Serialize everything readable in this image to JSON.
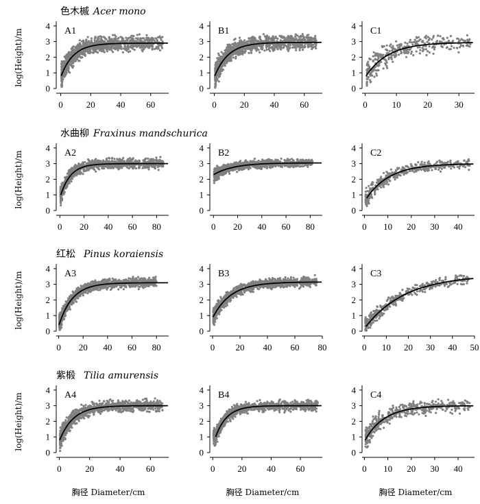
{
  "figure": {
    "y_label": "log(Height)/m",
    "x_label": "胸径 Diameter/cm"
  },
  "rows": [
    {
      "cn": "色木槭",
      "latin": "Acer mono"
    },
    {
      "cn": "水曲柳",
      "latin": "Fraxinus mandschurica"
    },
    {
      "cn": "红松",
      "latin": "Pinus koraiensis"
    },
    {
      "cn": "紫椴",
      "latin": "Tilia amurensis"
    }
  ],
  "chart_data": [
    {
      "id": "A1",
      "type": "scatter",
      "row": 0,
      "col": 0,
      "xlim": [
        -3,
        72
      ],
      "xticks": [
        0,
        20,
        40,
        60
      ],
      "ylim": [
        0,
        4.3
      ],
      "yticks": [
        0,
        1,
        2,
        3,
        4
      ],
      "curve": {
        "a": 2.9,
        "b": 0.12,
        "x0": 0.3,
        "y0": 0.8
      },
      "scatter": {
        "xmax": 68,
        "n": 1100,
        "spread": 0.45,
        "color": "#808080"
      }
    },
    {
      "id": "B1",
      "type": "scatter",
      "row": 0,
      "col": 1,
      "xlim": [
        -3,
        72
      ],
      "xticks": [
        0,
        20,
        40,
        60
      ],
      "ylim": [
        0,
        4.3
      ],
      "yticks": [
        0,
        1,
        2,
        3,
        4
      ],
      "curve": {
        "a": 2.95,
        "b": 0.11,
        "x0": 0.3,
        "y0": 0.8
      },
      "scatter": {
        "xmax": 68,
        "n": 1100,
        "spread": 0.45,
        "color": "#808080"
      }
    },
    {
      "id": "C1",
      "type": "scatter",
      "row": 0,
      "col": 2,
      "xlim": [
        -1,
        35
      ],
      "xticks": [
        0,
        10,
        20,
        30
      ],
      "ylim": [
        0,
        4.3
      ],
      "yticks": [
        0,
        1,
        2,
        3,
        4
      ],
      "curve": {
        "a": 2.95,
        "b": 0.14,
        "x0": 0.3,
        "y0": 0.8
      },
      "scatter": {
        "xmax": 34,
        "n": 350,
        "spread": 0.5,
        "color": "#808080"
      }
    },
    {
      "id": "A2",
      "type": "scatter",
      "row": 1,
      "col": 0,
      "xlim": [
        -3,
        90
      ],
      "xticks": [
        0,
        20,
        40,
        60,
        80
      ],
      "ylim": [
        0,
        4.3
      ],
      "yticks": [
        0,
        1,
        2,
        3,
        4
      ],
      "curve": {
        "a": 3.0,
        "b": 0.12,
        "x0": 0.8,
        "y0": 1.0
      },
      "scatter": {
        "xmax": 86,
        "n": 1000,
        "spread": 0.3,
        "color": "#808080"
      }
    },
    {
      "id": "B2",
      "type": "scatter",
      "row": 1,
      "col": 1,
      "xlim": [
        -3,
        90
      ],
      "xticks": [
        0,
        20,
        40,
        60,
        80
      ],
      "ylim": [
        0,
        4.3
      ],
      "yticks": [
        0,
        1,
        2,
        3,
        4
      ],
      "curve": {
        "a": 3.05,
        "b": 0.06,
        "x0": 0.3,
        "y0": 2.3
      },
      "scatter": {
        "xmax": 82,
        "n": 1000,
        "spread": 0.25,
        "color": "#808080"
      }
    },
    {
      "id": "C2",
      "type": "scatter",
      "row": 1,
      "col": 2,
      "xlim": [
        -1,
        47
      ],
      "xticks": [
        0,
        10,
        20,
        30,
        40
      ],
      "ylim": [
        0,
        4.3
      ],
      "yticks": [
        0,
        1,
        2,
        3,
        4
      ],
      "curve": {
        "a": 3.0,
        "b": 0.1,
        "x0": 1,
        "y0": 0.8
      },
      "scatter": {
        "xmax": 45,
        "n": 450,
        "spread": 0.3,
        "color": "#808080"
      }
    },
    {
      "id": "A3",
      "type": "scatter",
      "row": 2,
      "col": 0,
      "xlim": [
        -2,
        90
      ],
      "xticks": [
        0,
        20,
        40,
        60,
        80
      ],
      "ylim": [
        0,
        4.3
      ],
      "yticks": [
        0,
        1,
        2,
        3,
        4
      ],
      "curve": {
        "a": 3.1,
        "b": 0.09,
        "x0": 0.3,
        "y0": 0.4
      },
      "scatter": {
        "xmax": 80,
        "n": 1100,
        "spread": 0.3,
        "color": "#808080"
      }
    },
    {
      "id": "B3",
      "type": "scatter",
      "row": 2,
      "col": 1,
      "xlim": [
        -2,
        80
      ],
      "xticks": [
        0,
        20,
        40,
        60,
        80
      ],
      "ylim": [
        0,
        4.3
      ],
      "yticks": [
        0,
        1,
        2,
        3,
        4
      ],
      "curve": {
        "a": 3.15,
        "b": 0.075,
        "x0": 0.3,
        "y0": 0.9
      },
      "scatter": {
        "xmax": 76,
        "n": 1000,
        "spread": 0.3,
        "color": "#808080"
      }
    },
    {
      "id": "C3",
      "type": "scatter",
      "row": 2,
      "col": 2,
      "xlim": [
        -1,
        50
      ],
      "xticks": [
        0,
        10,
        20,
        30,
        40,
        50
      ],
      "ylim": [
        0,
        4.3
      ],
      "yticks": [
        0,
        1,
        2,
        3,
        4
      ],
      "curve": {
        "a": 3.6,
        "b": 0.055,
        "x0": 0.8,
        "y0": 0.3
      },
      "scatter": {
        "xmax": 48,
        "n": 400,
        "spread": 0.3,
        "color": "#808080"
      }
    },
    {
      "id": "A4",
      "type": "scatter",
      "row": 3,
      "col": 0,
      "xlim": [
        -2,
        72
      ],
      "xticks": [
        0,
        20,
        40,
        60
      ],
      "ylim": [
        0,
        4.3
      ],
      "yticks": [
        0,
        1,
        2,
        3,
        4
      ],
      "curve": {
        "a": 3.0,
        "b": 0.11,
        "x0": 0.3,
        "y0": 0.8
      },
      "scatter": {
        "xmax": 68,
        "n": 1100,
        "spread": 0.35,
        "color": "#808080"
      }
    },
    {
      "id": "B4",
      "type": "scatter",
      "row": 3,
      "col": 1,
      "xlim": [
        -2,
        75
      ],
      "xticks": [
        0,
        20,
        40,
        60
      ],
      "ylim": [
        0,
        4.3
      ],
      "yticks": [
        0,
        1,
        2,
        3,
        4
      ],
      "curve": {
        "a": 3.0,
        "b": 0.13,
        "x0": 2,
        "y0": 1.0
      },
      "scatter": {
        "xmax": 72,
        "n": 1000,
        "spread": 0.3,
        "color": "#808080"
      }
    },
    {
      "id": "C4",
      "type": "scatter",
      "row": 3,
      "col": 2,
      "xlim": [
        -1,
        47
      ],
      "xticks": [
        0,
        10,
        20,
        30,
        40
      ],
      "ylim": [
        0,
        4.3
      ],
      "yticks": [
        0,
        1,
        2,
        3,
        4
      ],
      "curve": {
        "a": 3.0,
        "b": 0.12,
        "x0": 0.3,
        "y0": 0.8
      },
      "scatter": {
        "xmax": 45,
        "n": 450,
        "spread": 0.4,
        "color": "#808080"
      }
    }
  ]
}
